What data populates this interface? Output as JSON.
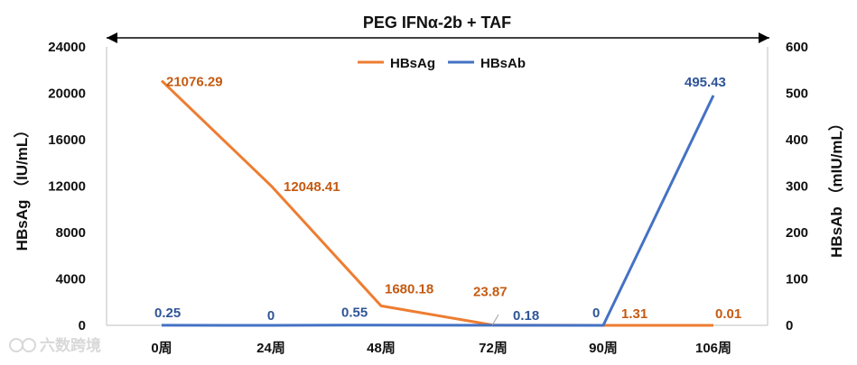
{
  "chart_data": {
    "type": "line",
    "title": "PEG IFNα-2b + TAF",
    "categories": [
      "0周",
      "24周",
      "48周",
      "72周",
      "90周",
      "106周"
    ],
    "y_left": {
      "label": "HBsAg （IU/mL）",
      "range": [
        0,
        24000
      ],
      "ticks": [
        "0",
        "4000",
        "8000",
        "12000",
        "16000",
        "20000",
        "24000"
      ]
    },
    "y_right": {
      "label": "HBsAb （mIU/mL）",
      "range": [
        0,
        600
      ],
      "ticks": [
        "0",
        "100",
        "200",
        "300",
        "400",
        "500",
        "600"
      ]
    },
    "series": [
      {
        "name": "HBsAg",
        "axis": "left",
        "color": "#ed7d31",
        "values": [
          21076.29,
          12048.41,
          1680.18,
          23.87,
          1.31,
          0.01
        ],
        "labels": [
          "21076.29",
          "12048.41",
          "1680.18",
          "23.87",
          "1.31",
          "0.01"
        ]
      },
      {
        "name": "HBsAb",
        "axis": "right",
        "color": "#4472c4",
        "values": [
          0.25,
          0,
          0.55,
          0.18,
          0,
          495.43
        ],
        "labels": [
          "0.25",
          "0",
          "0.55",
          "0.18",
          "0",
          "495.43"
        ]
      }
    ],
    "legend": "top-center",
    "grid": false
  },
  "watermark": "六数跨境"
}
